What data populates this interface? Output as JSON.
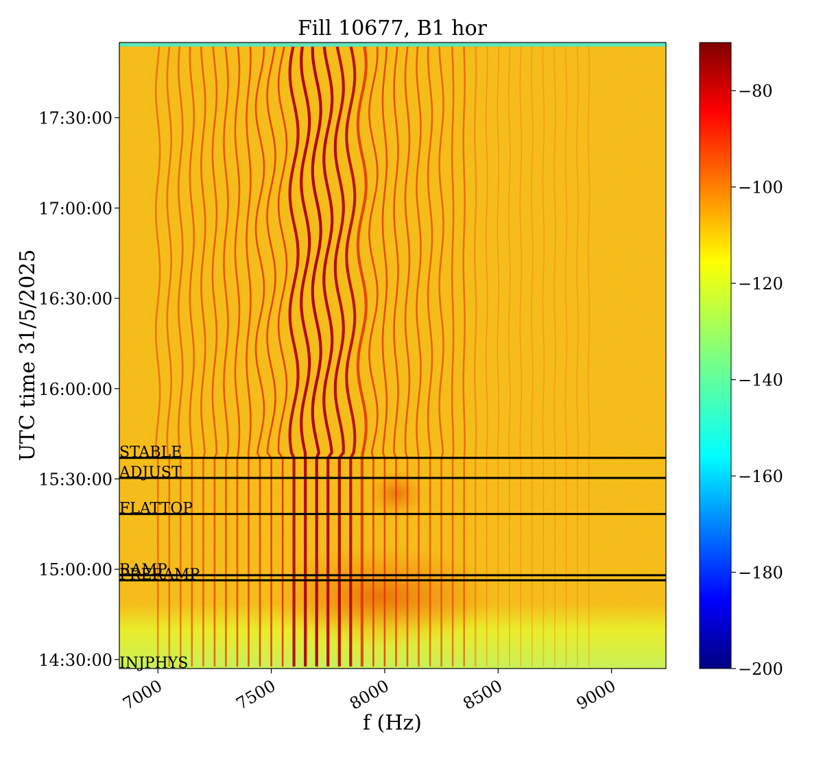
{
  "chart_data": {
    "type": "heatmap",
    "title": "Fill 10677, B1 hor",
    "xlabel": "f (Hz)",
    "ylabel": "UTC time 31/5/2025",
    "xlim": [
      6830,
      9240
    ],
    "ylim_time": [
      "14:27:00",
      "17:55:00"
    ],
    "x_ticks": [
      7000,
      7500,
      8000,
      8500,
      9000
    ],
    "x_tick_labels": [
      "7000",
      "7500",
      "8000",
      "8500",
      "9000"
    ],
    "y_ticks": [
      "14:30:00",
      "15:00:00",
      "15:30:00",
      "16:00:00",
      "16:30:00",
      "17:00:00",
      "17:30:00"
    ],
    "y_tick_labels": [
      "14:30:00",
      "15:00:00",
      "15:30:00",
      "16:00:00",
      "16:30:00",
      "17:00:00",
      "17:30:00"
    ],
    "colorbar": {
      "colormap": "jet",
      "range": [
        -200,
        -70
      ],
      "ticks": [
        -80,
        -100,
        -120,
        -140,
        -160,
        -180,
        -200
      ],
      "tick_labels": [
        "−80",
        "−100",
        "−120",
        "−140",
        "−160",
        "−180",
        "−200"
      ]
    },
    "beam_modes": [
      {
        "label": "STABLE",
        "time": "15:37:00"
      },
      {
        "label": "ADJUST",
        "time": "15:30:20"
      },
      {
        "label": "FLATTOP",
        "time": "15:18:20"
      },
      {
        "label": "RAMP",
        "time": "14:58:00"
      },
      {
        "label": "PRERAMP",
        "time": "14:56:20"
      },
      {
        "label": "INJPHYS",
        "time": "14:27:00"
      }
    ],
    "lines_frequency_hz": [
      7000,
      7050,
      7100,
      7150,
      7200,
      7250,
      7300,
      7350,
      7400,
      7450,
      7500,
      7550,
      7600,
      7650,
      7700,
      7750,
      7800,
      7850,
      7900,
      7950,
      8000,
      8050,
      8100,
      8150,
      8200,
      8250,
      8300,
      8350,
      8400,
      8450,
      8500,
      8550,
      8600,
      8650,
      8700,
      8750,
      8800,
      8850,
      8900
    ],
    "colors": {
      "background_level": "#f3c21f",
      "strong_line": "#c40000",
      "low_noise": "#d8f23a",
      "edge_band": "#5fe6b8"
    }
  }
}
